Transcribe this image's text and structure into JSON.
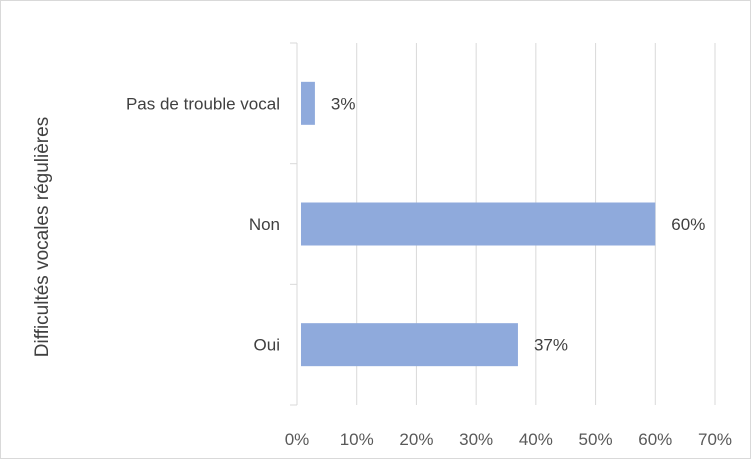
{
  "chart_data": {
    "type": "bar",
    "orientation": "horizontal",
    "title": "",
    "xlabel": "",
    "ylabel": "Difficultés vocales régulières",
    "categories": [
      "Pas de trouble vocal",
      "Non",
      "Oui"
    ],
    "values": [
      3,
      60,
      37
    ],
    "data_labels": [
      "3%",
      "60%",
      "37%"
    ],
    "xlim": [
      0,
      70
    ],
    "x_ticks": [
      "0%",
      "10%",
      "20%",
      "30%",
      "40%",
      "50%",
      "60%",
      "70%"
    ],
    "grid": true,
    "legend": "none",
    "bar_color": "#8faadc",
    "grid_color": "#d9d9d9"
  }
}
